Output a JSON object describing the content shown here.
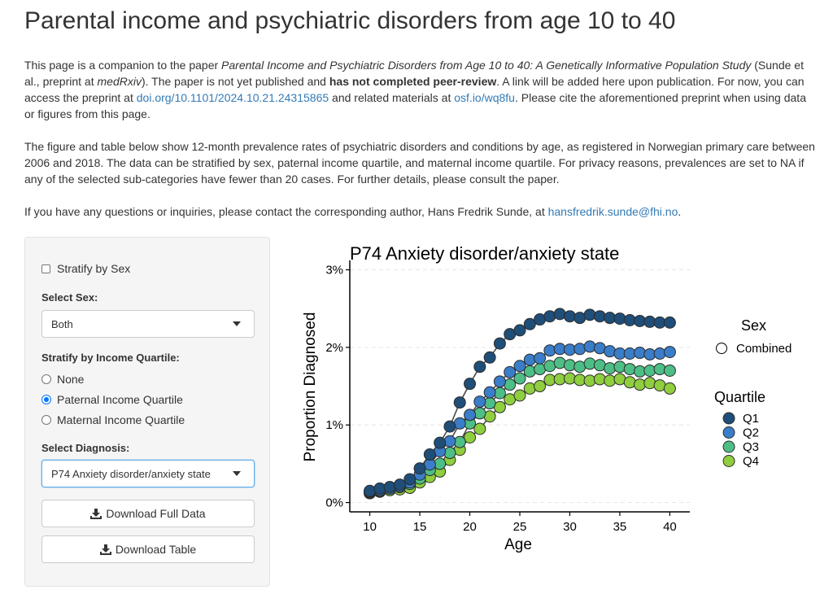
{
  "page": {
    "title": "Parental income and psychiatric disorders from age 10 to 40"
  },
  "intro": {
    "p1": {
      "t1": "This page is a companion to the paper ",
      "paper_title": "Parental Income and Psychiatric Disorders from Age 10 to 40: A Genetically Informative Population Study",
      "t2": " (Sunde et al., preprint at ",
      "medrxiv": "medRxiv",
      "t3": "). The paper is not yet published and ",
      "bold": "has not completed peer-review",
      "t4": ". A link will be added here upon publication. For now, you can access the preprint at ",
      "doi_link": "doi.org/10.1101/2024.10.21.24315865",
      "t5": " and related materials at ",
      "osf_link": "osf.io/wq8fu",
      "t6": ". Please cite the aforementioned preprint when using data or figures from this page."
    },
    "p2": "The figure and table below show 12-month prevalence rates of psychiatric disorders and conditions by age, as registered in Norwegian primary care between 2006 and 2018. The data can be stratified by sex, paternal income quartile, and maternal income quartile. For privacy reasons, prevalences are set to NA if any of the selected sub-categories have fewer than 20 cases. For further details, please consult the paper.",
    "p3": {
      "t1": "If you have any questions or inquiries, please contact the corresponding author, Hans Fredrik Sunde, at ",
      "email_link": "hansfredrik.sunde@fhi.no",
      "t2": "."
    }
  },
  "sidebar": {
    "stratify_sex_label": "Stratify by Sex",
    "select_sex_label": "Select Sex:",
    "select_sex_value": "Both",
    "income_label": "Stratify by Income Quartile:",
    "income_options": [
      "None",
      "Paternal Income Quartile",
      "Maternal Income Quartile"
    ],
    "income_selected": "Paternal Income Quartile",
    "diagnosis_label": "Select Diagnosis:",
    "diagnosis_value": "P74 Anxiety disorder/anxiety state",
    "download_full_label": "Download Full Data",
    "download_table_label": "Download Table"
  },
  "colors": {
    "accent": "#337ab7",
    "q1": "#1f4e79",
    "q2": "#3a7dc9",
    "q3": "#4dbf86",
    "q4": "#8fce3e"
  },
  "chart_data": {
    "type": "line",
    "title": "P74 Anxiety disorder/anxiety state",
    "xlabel": "Age",
    "ylabel": "Proportion Diagnosed",
    "xlim": [
      8,
      42
    ],
    "ylim": [
      -0.0012,
      0.031
    ],
    "xticks": [
      10,
      15,
      20,
      25,
      30,
      35,
      40
    ],
    "yticks": [
      0,
      0.01,
      0.02,
      0.03
    ],
    "ytick_labels": [
      "0%",
      "1%",
      "2%",
      "3%"
    ],
    "grid": "horizontal-dashed",
    "x": [
      10,
      11,
      12,
      13,
      14,
      15,
      16,
      17,
      18,
      19,
      20,
      21,
      22,
      23,
      24,
      25,
      26,
      27,
      28,
      29,
      30,
      31,
      32,
      33,
      34,
      35,
      36,
      37,
      38,
      39,
      40
    ],
    "legend": {
      "sex_title": "Sex",
      "sex_entries": [
        "Combined"
      ],
      "quartile_title": "Quartile",
      "position": "right"
    },
    "series": [
      {
        "name": "Q1",
        "values": [
          0.0015,
          0.0018,
          0.002,
          0.0023,
          0.003,
          0.0044,
          0.0062,
          0.0077,
          0.0098,
          0.0129,
          0.0153,
          0.0175,
          0.0187,
          0.0205,
          0.0217,
          0.0222,
          0.023,
          0.0236,
          0.024,
          0.0243,
          0.024,
          0.0238,
          0.0242,
          0.024,
          0.0238,
          0.0237,
          0.0235,
          0.0234,
          0.0233,
          0.0232,
          0.0232
        ]
      },
      {
        "name": "Q2",
        "values": [
          0.0014,
          0.0016,
          0.0018,
          0.0021,
          0.0026,
          0.0036,
          0.0049,
          0.0066,
          0.0079,
          0.0102,
          0.0113,
          0.013,
          0.0142,
          0.0156,
          0.0168,
          0.0176,
          0.0184,
          0.0186,
          0.0196,
          0.0198,
          0.0197,
          0.0198,
          0.0201,
          0.0199,
          0.0195,
          0.0192,
          0.0192,
          0.0193,
          0.0191,
          0.0192,
          0.0194
        ]
      },
      {
        "name": "Q3",
        "values": [
          0.0013,
          0.0015,
          0.0018,
          0.002,
          0.0024,
          0.0031,
          0.0042,
          0.005,
          0.0064,
          0.0078,
          0.0102,
          0.0115,
          0.0128,
          0.0141,
          0.0152,
          0.016,
          0.0169,
          0.0172,
          0.0176,
          0.018,
          0.0177,
          0.0175,
          0.0179,
          0.0177,
          0.0173,
          0.0175,
          0.0172,
          0.0169,
          0.017,
          0.0172,
          0.017
        ]
      },
      {
        "name": "Q4",
        "values": [
          0.0012,
          0.0014,
          0.0016,
          0.0017,
          0.0019,
          0.0026,
          0.0033,
          0.004,
          0.0055,
          0.0068,
          0.0084,
          0.0095,
          0.0111,
          0.0123,
          0.0133,
          0.0138,
          0.0147,
          0.015,
          0.0158,
          0.0159,
          0.016,
          0.0158,
          0.0157,
          0.0159,
          0.0157,
          0.0159,
          0.0155,
          0.0152,
          0.0154,
          0.0151,
          0.0147
        ]
      }
    ]
  }
}
